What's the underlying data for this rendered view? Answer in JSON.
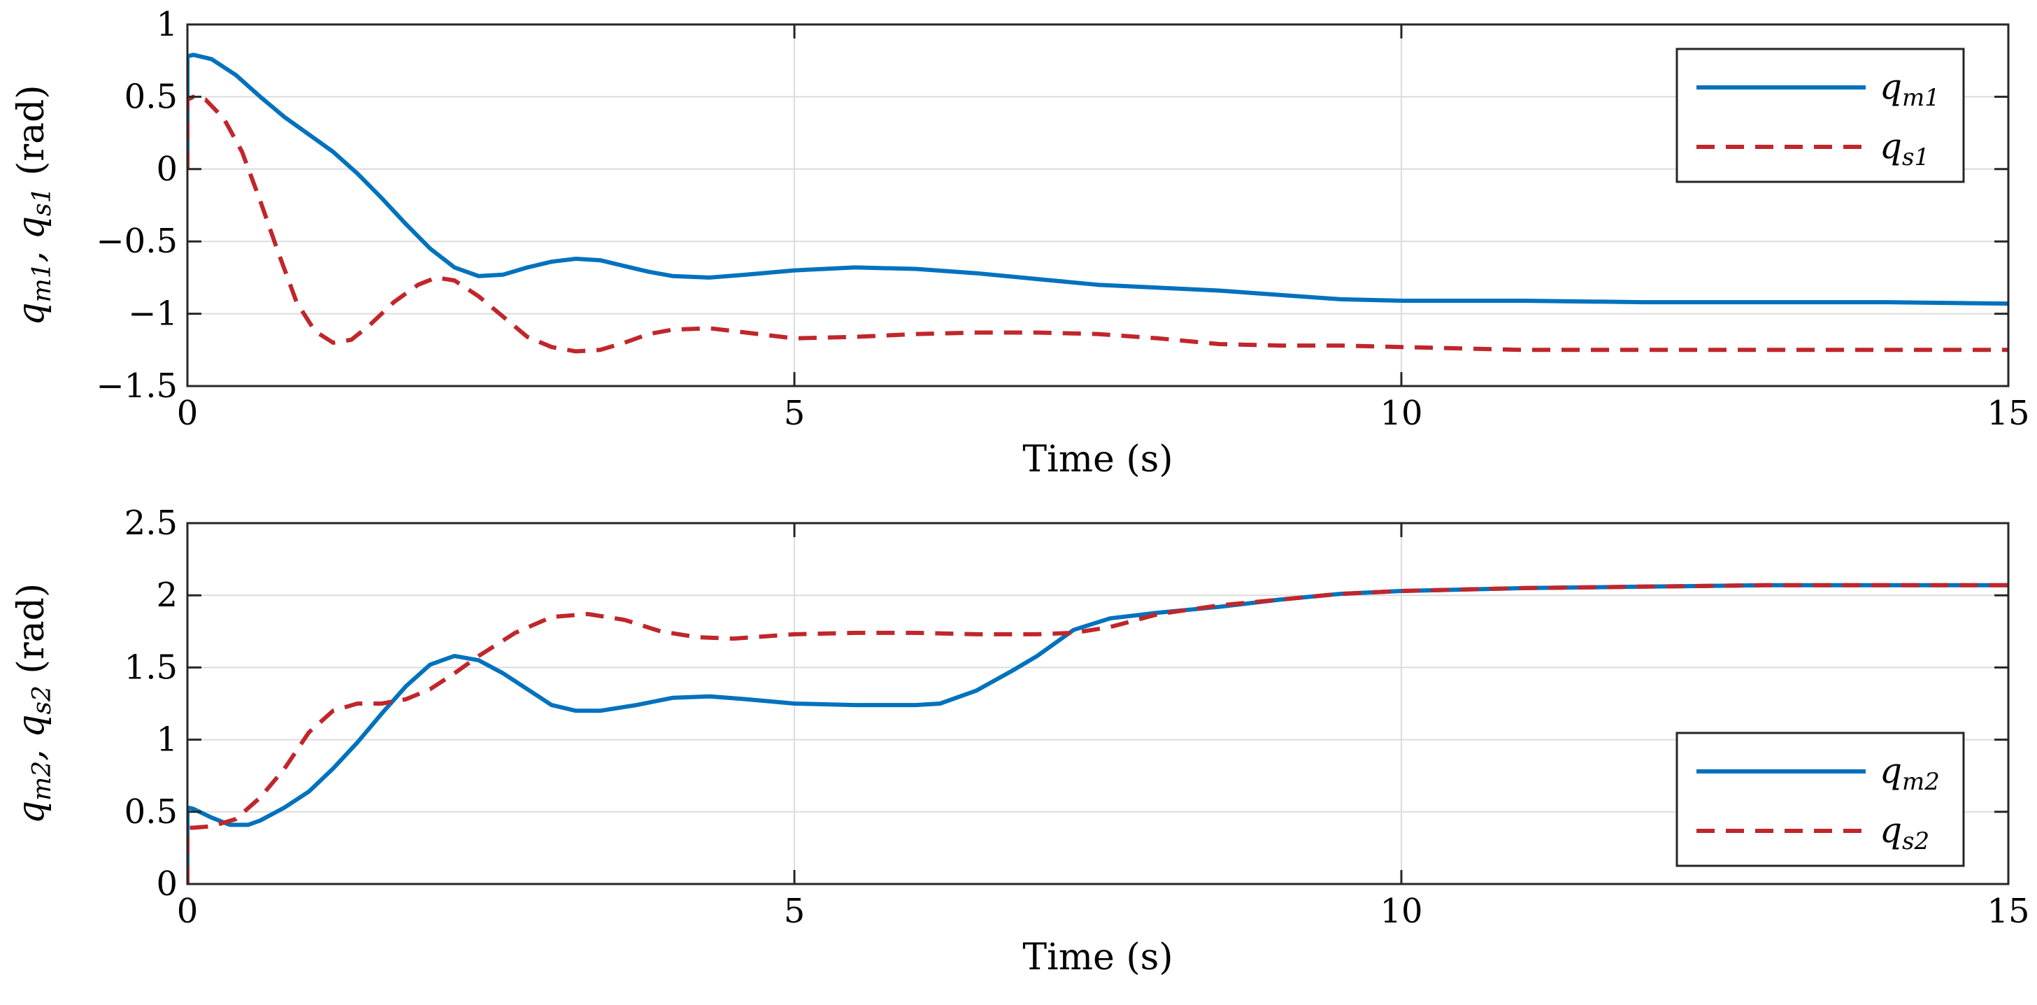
{
  "chart_data": [
    {
      "type": "line",
      "id": "top",
      "xlabel": "Time (s)",
      "ylabel": "q_m1, q_s1 (rad)",
      "ylabel_parts": [
        "q",
        "m1",
        ", q",
        "s1",
        " (rad)"
      ],
      "xlim": [
        0,
        15
      ],
      "ylim": [
        -1.5,
        1
      ],
      "xticks": [
        0,
        5,
        10,
        15
      ],
      "yticks": [
        -1.5,
        -1,
        -0.5,
        0,
        0.5,
        1
      ],
      "ytick_labels": [
        "−1.5",
        "−1",
        "−0.5",
        "0",
        "0.5",
        "1"
      ],
      "xtick_labels": [
        "0",
        "5",
        "10",
        "15"
      ],
      "grid": true,
      "legend_position": "top-right",
      "series": [
        {
          "name": "q_m1",
          "main": "q",
          "sub": "m1",
          "color": "#0072BD",
          "dash": "solid",
          "x": [
            0,
            0,
            0.05,
            0.2,
            0.4,
            0.6,
            0.8,
            1.0,
            1.2,
            1.4,
            1.6,
            1.8,
            2.0,
            2.2,
            2.4,
            2.6,
            2.8,
            3.0,
            3.2,
            3.4,
            3.6,
            3.8,
            4.0,
            4.3,
            4.6,
            5.0,
            5.5,
            6.0,
            6.5,
            7.0,
            7.5,
            8.0,
            8.5,
            9.0,
            9.5,
            10.0,
            11.0,
            12.0,
            13.0,
            14.0,
            15.0
          ],
          "y": [
            0,
            0.78,
            0.79,
            0.76,
            0.65,
            0.5,
            0.36,
            0.24,
            0.12,
            -0.03,
            -0.2,
            -0.38,
            -0.55,
            -0.68,
            -0.74,
            -0.73,
            -0.68,
            -0.64,
            -0.62,
            -0.63,
            -0.67,
            -0.71,
            -0.74,
            -0.75,
            -0.73,
            -0.7,
            -0.68,
            -0.69,
            -0.72,
            -0.76,
            -0.8,
            -0.82,
            -0.84,
            -0.87,
            -0.9,
            -0.91,
            -0.91,
            -0.92,
            -0.92,
            -0.92,
            -0.93
          ]
        },
        {
          "name": "q_s1",
          "main": "q",
          "sub": "s1",
          "color": "#C0262B",
          "dash": "dashed",
          "x": [
            0,
            0,
            0.05,
            0.15,
            0.3,
            0.45,
            0.6,
            0.75,
            0.9,
            1.05,
            1.2,
            1.35,
            1.5,
            1.7,
            1.9,
            2.05,
            2.2,
            2.4,
            2.6,
            2.8,
            3.0,
            3.2,
            3.4,
            3.6,
            3.8,
            4.0,
            4.3,
            4.6,
            5.0,
            5.5,
            6.0,
            6.5,
            7.0,
            7.5,
            8.0,
            8.5,
            9.0,
            9.5,
            10.0,
            11.0,
            12.0,
            13.0,
            14.0,
            15.0
          ],
          "y": [
            0,
            0.48,
            0.5,
            0.48,
            0.35,
            0.12,
            -0.22,
            -0.58,
            -0.92,
            -1.12,
            -1.2,
            -1.18,
            -1.08,
            -0.92,
            -0.8,
            -0.75,
            -0.77,
            -0.88,
            -1.02,
            -1.16,
            -1.23,
            -1.26,
            -1.25,
            -1.2,
            -1.14,
            -1.11,
            -1.1,
            -1.13,
            -1.17,
            -1.16,
            -1.14,
            -1.13,
            -1.13,
            -1.14,
            -1.17,
            -1.21,
            -1.22,
            -1.22,
            -1.23,
            -1.25,
            -1.25,
            -1.25,
            -1.25,
            -1.25
          ]
        }
      ]
    },
    {
      "type": "line",
      "id": "bottom",
      "xlabel": "Time (s)",
      "ylabel": "q_m2, q_s2 (rad)",
      "ylabel_parts": [
        "q",
        "m2",
        ", q",
        "s2",
        " (rad)"
      ],
      "xlim": [
        0,
        15
      ],
      "ylim": [
        0,
        2.5
      ],
      "xticks": [
        0,
        5,
        10,
        15
      ],
      "yticks": [
        0,
        0.5,
        1,
        1.5,
        2,
        2.5
      ],
      "ytick_labels": [
        "0",
        "0.5",
        "1",
        "1.5",
        "2",
        "2.5"
      ],
      "xtick_labels": [
        "0",
        "5",
        "10",
        "15"
      ],
      "grid": true,
      "legend_position": "bottom-right",
      "series": [
        {
          "name": "q_m2",
          "main": "q",
          "sub": "m2",
          "color": "#0072BD",
          "dash": "solid",
          "x": [
            0,
            0,
            0.05,
            0.2,
            0.35,
            0.5,
            0.6,
            0.8,
            1.0,
            1.2,
            1.4,
            1.6,
            1.8,
            2.0,
            2.2,
            2.4,
            2.6,
            2.8,
            3.0,
            3.2,
            3.4,
            3.7,
            4.0,
            4.3,
            4.6,
            5.0,
            5.5,
            6.0,
            6.2,
            6.5,
            6.8,
            7.0,
            7.3,
            7.6,
            8.0,
            8.5,
            9.0,
            9.5,
            10.0,
            11.0,
            12.0,
            13.0,
            14.0,
            15.0
          ],
          "y": [
            0,
            0.53,
            0.52,
            0.46,
            0.41,
            0.41,
            0.44,
            0.53,
            0.64,
            0.8,
            0.98,
            1.18,
            1.37,
            1.52,
            1.58,
            1.55,
            1.46,
            1.35,
            1.24,
            1.2,
            1.2,
            1.24,
            1.29,
            1.3,
            1.28,
            1.25,
            1.24,
            1.24,
            1.25,
            1.34,
            1.48,
            1.58,
            1.76,
            1.84,
            1.88,
            1.92,
            1.97,
            2.01,
            2.03,
            2.05,
            2.06,
            2.07,
            2.07,
            2.07
          ]
        },
        {
          "name": "q_s2",
          "main": "q",
          "sub": "s2",
          "color": "#C0262B",
          "dash": "dashed",
          "x": [
            0,
            0,
            0.05,
            0.2,
            0.4,
            0.6,
            0.8,
            1.0,
            1.2,
            1.4,
            1.6,
            1.8,
            2.0,
            2.2,
            2.4,
            2.7,
            3.0,
            3.3,
            3.6,
            3.9,
            4.2,
            4.5,
            5.0,
            5.5,
            6.0,
            6.5,
            7.0,
            7.3,
            7.6,
            8.0,
            8.5,
            9.0,
            9.5,
            10.0,
            10.5,
            11.0,
            12.0,
            13.0,
            14.0,
            15.0
          ],
          "y": [
            0,
            0.39,
            0.39,
            0.4,
            0.45,
            0.6,
            0.8,
            1.05,
            1.2,
            1.25,
            1.25,
            1.28,
            1.35,
            1.46,
            1.58,
            1.74,
            1.85,
            1.87,
            1.83,
            1.75,
            1.71,
            1.7,
            1.73,
            1.74,
            1.74,
            1.73,
            1.73,
            1.74,
            1.78,
            1.87,
            1.93,
            1.97,
            2.01,
            2.03,
            2.04,
            2.05,
            2.06,
            2.07,
            2.07,
            2.07
          ]
        }
      ]
    }
  ]
}
